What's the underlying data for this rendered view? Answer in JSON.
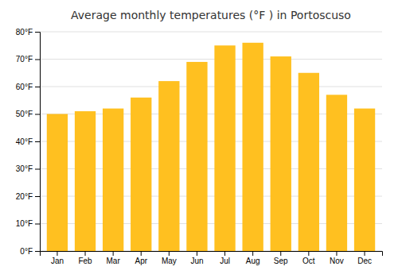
{
  "chart_data": {
    "type": "bar",
    "title": "Average monthly temperatures (°F ) in Portoscuso",
    "categories": [
      "Jan",
      "Feb",
      "Mar",
      "Apr",
      "May",
      "Jun",
      "Jul",
      "Aug",
      "Sep",
      "Oct",
      "Nov",
      "Dec"
    ],
    "values": [
      50,
      51,
      52,
      56,
      62,
      69,
      75,
      76,
      71,
      65,
      57,
      52
    ],
    "color": "#FFC020",
    "ylim": [
      0,
      80
    ],
    "yticks": [
      {
        "value": 0,
        "label": "0°F"
      },
      {
        "value": 10,
        "label": "10°F"
      },
      {
        "value": 20,
        "label": "20°F"
      },
      {
        "value": 30,
        "label": "30°F"
      },
      {
        "value": 40,
        "label": "40°F"
      },
      {
        "value": 50,
        "label": "50°F"
      },
      {
        "value": 60,
        "label": "60°F"
      },
      {
        "value": 70,
        "label": "70°F"
      },
      {
        "value": 80,
        "label": "80°F"
      }
    ],
    "grid": true
  }
}
